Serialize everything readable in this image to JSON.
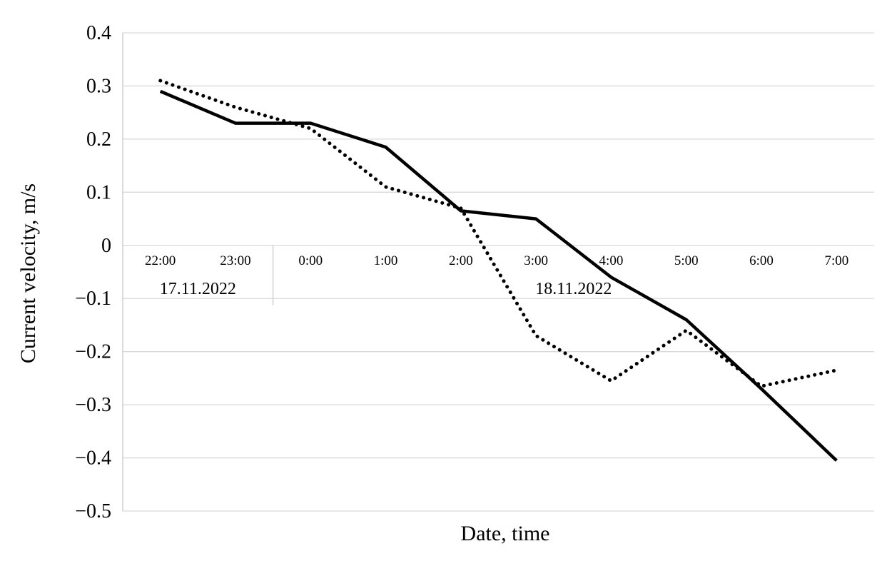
{
  "chart_data": {
    "type": "line",
    "title": "",
    "xlabel": "Date, time",
    "ylabel": "Current velocity, m/s",
    "categories": [
      "22:00",
      "23:00",
      "0:00",
      "1:00",
      "2:00",
      "3:00",
      "4:00",
      "5:00",
      "6:00",
      "7:00"
    ],
    "date_groups": [
      {
        "label": "17.11.2022",
        "start_index": 0,
        "end_index": 1
      },
      {
        "label": "18.11.2022",
        "start_index": 2,
        "end_index": 9
      }
    ],
    "series": [
      {
        "name": "solid",
        "style": "solid",
        "values": [
          0.29,
          0.23,
          0.23,
          0.185,
          0.065,
          0.05,
          -0.06,
          -0.14,
          -0.27,
          -0.405
        ]
      },
      {
        "name": "dotted",
        "style": "dotted",
        "values": [
          0.31,
          0.26,
          0.22,
          0.11,
          0.07,
          -0.17,
          -0.255,
          -0.16,
          -0.265,
          -0.235
        ]
      }
    ],
    "ylim": [
      -0.5,
      0.4
    ],
    "ytick_step": 0.1,
    "grid": true,
    "legend": "none",
    "colors": {
      "line": "#000000",
      "grid": "#d9d9d9",
      "axis": "#c8c8c8",
      "text": "#000000"
    }
  }
}
